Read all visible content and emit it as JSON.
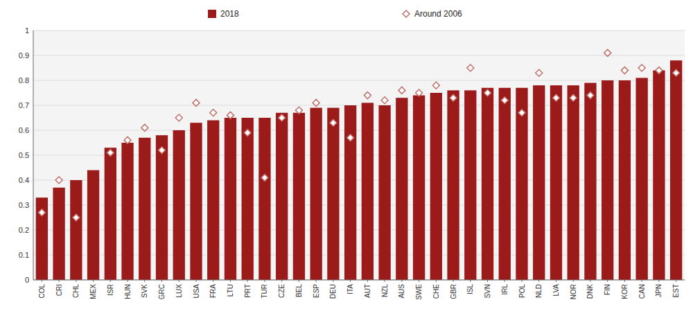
{
  "chart_data": {
    "type": "bar",
    "categories": [
      "COL",
      "CRI",
      "CHL",
      "MEX",
      "ISR",
      "HUN",
      "SVK",
      "GRC",
      "LUX",
      "USA",
      "FRA",
      "LTU",
      "PRT",
      "TUR",
      "CZE",
      "BEL",
      "ESP",
      "DEU",
      "ITA",
      "AUT",
      "NZL",
      "AUS",
      "SWE",
      "CHE",
      "GBR",
      "ISL",
      "SVN",
      "IRL",
      "POL",
      "NLD",
      "LVA",
      "NOR",
      "DNK",
      "FIN",
      "KOR",
      "CAN",
      "JPN",
      "EST"
    ],
    "series": [
      {
        "name": "2018",
        "type": "bar",
        "color": "#9B1B1B",
        "values": [
          0.33,
          0.37,
          0.4,
          0.44,
          0.53,
          0.55,
          0.57,
          0.58,
          0.6,
          0.63,
          0.64,
          0.65,
          0.65,
          0.65,
          0.67,
          0.67,
          0.69,
          0.69,
          0.7,
          0.71,
          0.7,
          0.73,
          0.74,
          0.75,
          0.76,
          0.76,
          0.77,
          0.77,
          0.77,
          0.78,
          0.78,
          0.78,
          0.79,
          0.8,
          0.8,
          0.81,
          0.84,
          0.88
        ]
      },
      {
        "name": "Around 2006",
        "type": "scatter",
        "marker": "diamond",
        "color": "#C0706A",
        "values": [
          0.27,
          0.4,
          0.25,
          null,
          0.51,
          0.56,
          0.61,
          0.52,
          0.65,
          0.71,
          0.67,
          0.66,
          0.59,
          0.41,
          0.65,
          0.68,
          0.71,
          0.63,
          0.57,
          0.74,
          0.72,
          0.76,
          0.75,
          0.78,
          0.73,
          0.85,
          0.75,
          0.72,
          0.67,
          0.83,
          0.73,
          0.73,
          0.74,
          0.91,
          0.84,
          0.85,
          0.84,
          0.83
        ]
      }
    ],
    "ylim": [
      0,
      1.0
    ],
    "yticks": [
      0,
      0.1,
      0.2,
      0.3,
      0.4,
      0.5,
      0.6,
      0.7,
      0.8,
      0.9,
      1
    ],
    "grid": true,
    "legend": "top"
  }
}
